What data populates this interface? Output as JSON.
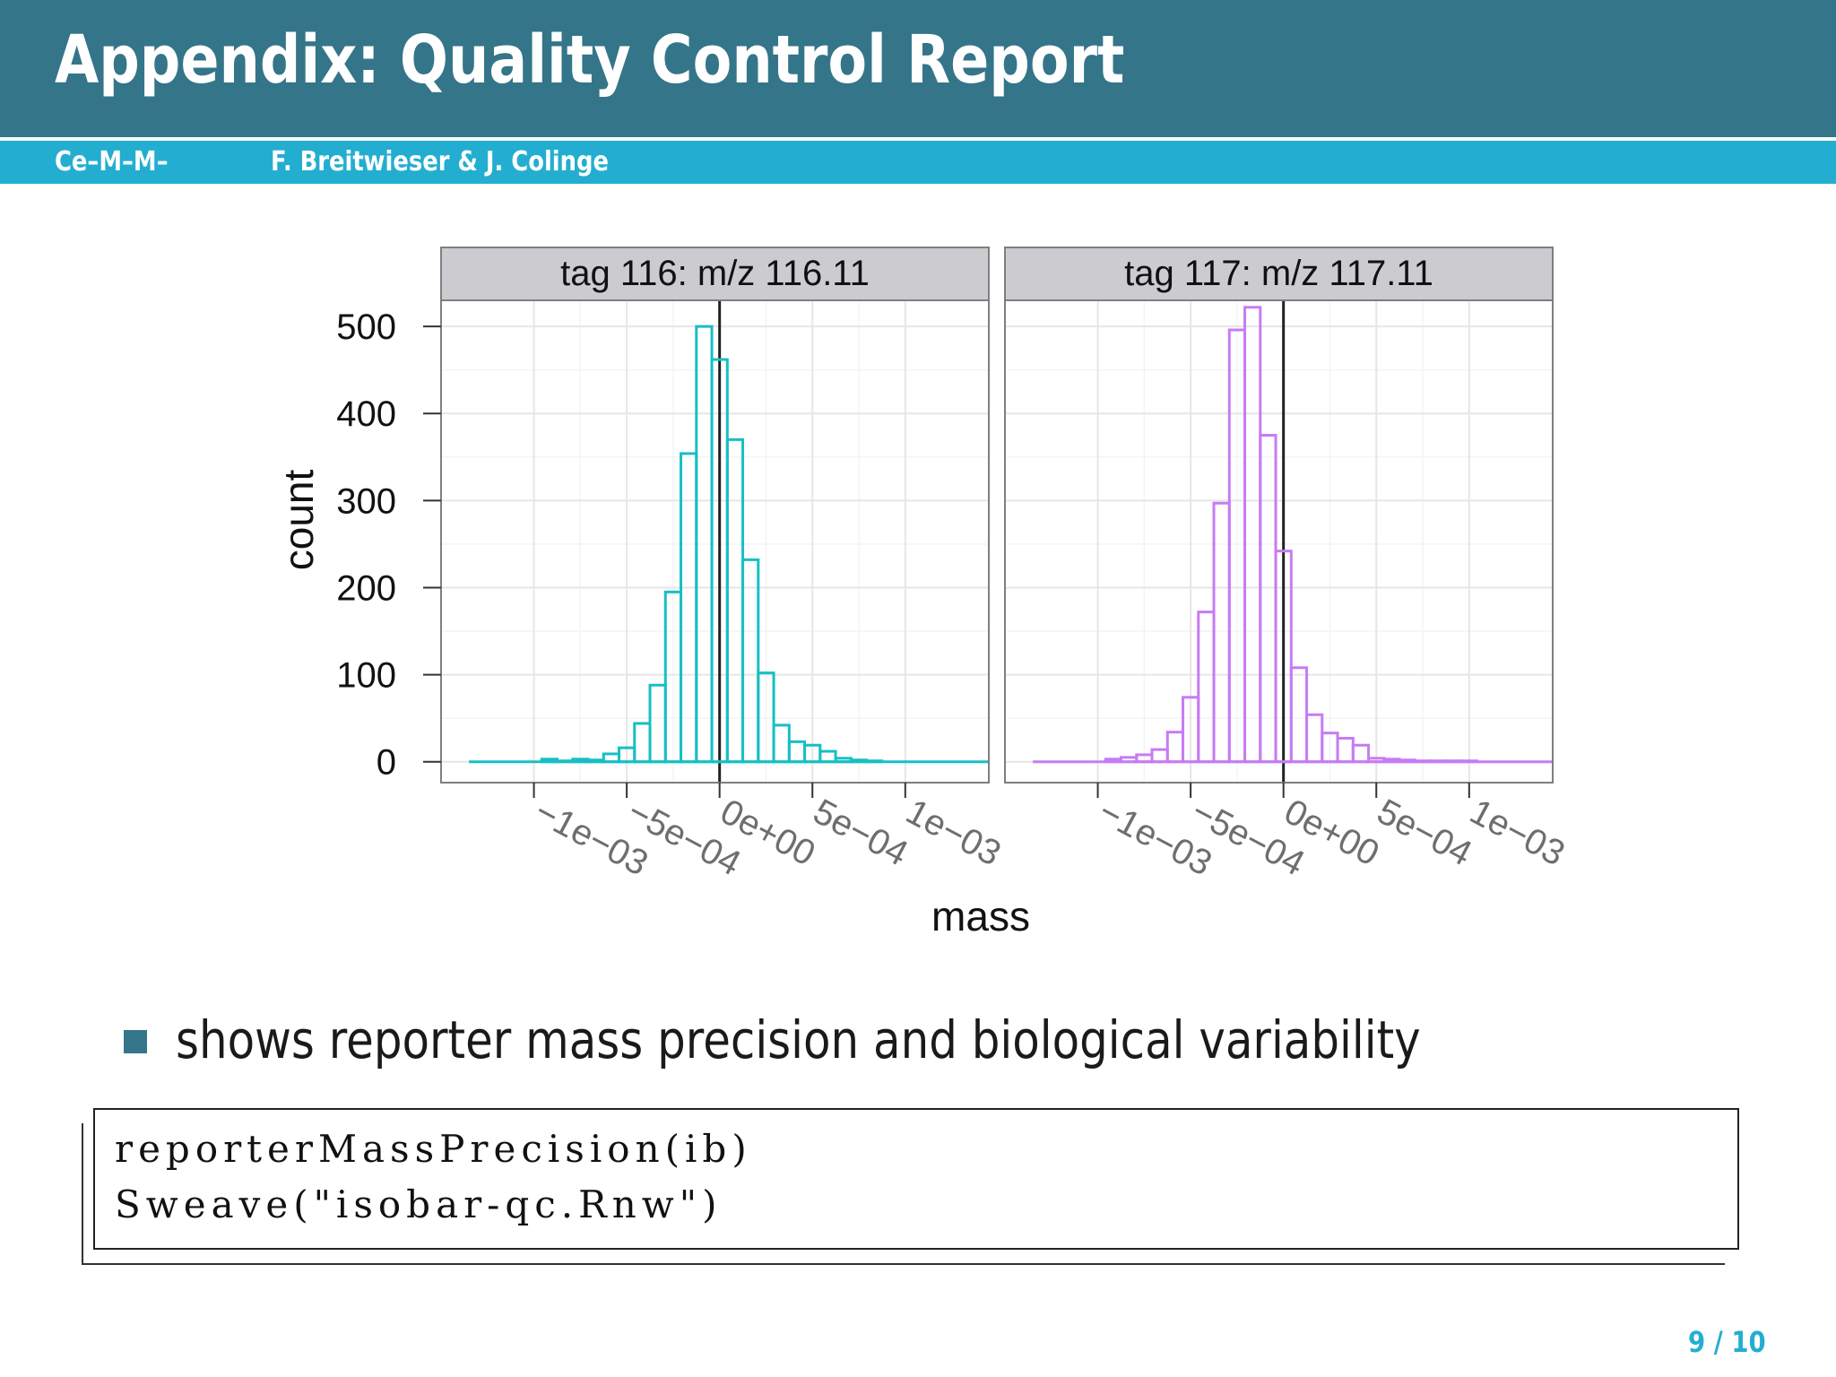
{
  "slide": {
    "title": "Appendix: Quality Control Report",
    "institute": "Ce–M–M–",
    "authors": "F. Breitwieser & J. Colinge",
    "bullet": "shows reporter mass precision and biological variability",
    "code_lines": [
      "reporterMassPrecision(ib)",
      "Sweave(\"isobar-qc.Rnw\")"
    ],
    "page_number": "9 / 10",
    "colors": {
      "title_bar": "#347589",
      "sub_bar": "#23aed1",
      "page_number": "#23aed1"
    }
  },
  "chart_data": {
    "type": "bar",
    "subtype": "histogram-step-facets",
    "xlabel": "mass",
    "ylabel": "count",
    "ylim": [
      -24,
      530
    ],
    "xlim": [
      -0.0015,
      0.00145
    ],
    "yticks": [
      0,
      100,
      200,
      300,
      400,
      500
    ],
    "ytick_labels": [
      "0",
      "100",
      "200",
      "300",
      "400",
      "500"
    ],
    "xticks": [
      -0.001,
      -0.0005,
      0,
      0.0005,
      0.001
    ],
    "xtick_labels": [
      "−1e−03",
      "−5e−04",
      "0e+00",
      "5e−04",
      "1e−03"
    ],
    "grid": true,
    "bin_width": 8.33e-05,
    "bin_start": -0.000958,
    "facets": [
      {
        "label": "tag 116: m/z 116.11",
        "color": "#17bfc4",
        "baseline_x": [
          -0.00135,
          0.00145
        ],
        "counts": [
          3,
          1,
          3,
          2,
          9,
          16,
          44,
          88,
          195,
          354,
          500,
          462,
          370,
          232,
          102,
          42,
          23,
          19,
          12,
          4,
          2,
          1,
          0,
          0,
          0,
          0,
          0,
          0
        ]
      },
      {
        "label": "tag 117: m/z 117.11",
        "color": "#c77cf2",
        "baseline_x": [
          -0.00135,
          0.00145
        ],
        "counts": [
          3,
          5,
          8,
          14,
          34,
          74,
          172,
          297,
          496,
          522,
          375,
          242,
          108,
          54,
          33,
          27,
          19,
          4,
          3,
          2,
          1,
          1,
          1,
          1,
          0,
          0,
          0,
          0
        ]
      }
    ]
  }
}
